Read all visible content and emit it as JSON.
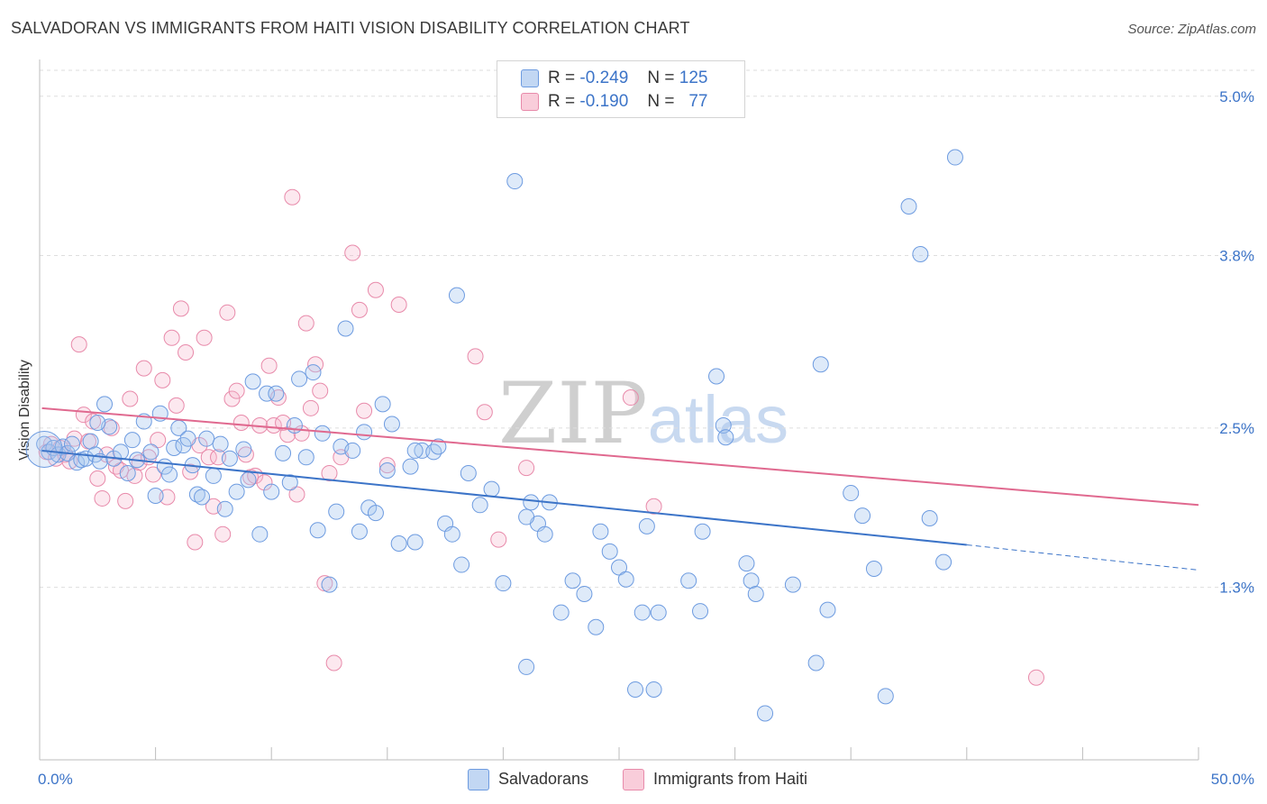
{
  "title": "SALVADORAN VS IMMIGRANTS FROM HAITI VISION DISABILITY CORRELATION CHART",
  "source": "Source: ZipAtlas.com",
  "watermark": {
    "zip": "ZIP",
    "atlas": "atlas"
  },
  "legend_top": [
    {
      "r_label": "R =",
      "r_value": "-0.249",
      "n_label": "N =",
      "n_value": "125",
      "color": "#a9c7ef"
    },
    {
      "r_label": "R =",
      "r_value": "-0.190",
      "n_label": "N =",
      "n_value": "77",
      "color": "#f6b8cc"
    }
  ],
  "legend_bottom": [
    {
      "label": "Salvadorans",
      "color": "#a9c7ef"
    },
    {
      "label": "Immigrants from Haiti",
      "color": "#f6b8cc"
    }
  ],
  "chart_data": {
    "type": "scatter",
    "xlabel": "",
    "ylabel": "Vision Disability",
    "xlim": [
      0,
      50
    ],
    "ylim": [
      0,
      5.25
    ],
    "x_tick_labels": [
      "0.0%",
      "50.0%"
    ],
    "y_ticks": [
      1.3,
      2.5,
      3.8,
      5.0
    ],
    "y_tick_labels": [
      "1.3%",
      "2.5%",
      "3.8%",
      "5.0%"
    ],
    "grid": "horizontal dashed",
    "colors": {
      "blue": "#3c74c8",
      "blue_fill": "#a9c7ef",
      "pink": "#e0698f",
      "pink_fill": "#f6b8cc"
    },
    "series": [
      {
        "name": "Salvadorans",
        "trend": {
          "x0": 0.1,
          "y0": 2.33,
          "x1": 40,
          "y1": 1.62,
          "dash_x1": 50,
          "dash_y1": 1.43
        },
        "points": [
          [
            0.2,
            2.38
          ],
          [
            0.4,
            2.32
          ],
          [
            0.6,
            2.35
          ],
          [
            0.8,
            2.3
          ],
          [
            1.0,
            2.36
          ],
          [
            1.2,
            2.31
          ],
          [
            1.4,
            2.38
          ],
          [
            1.6,
            2.24
          ],
          [
            1.8,
            2.26
          ],
          [
            2.0,
            2.27
          ],
          [
            2.2,
            2.4
          ],
          [
            2.4,
            2.3
          ],
          [
            2.6,
            2.25
          ],
          [
            2.8,
            2.68
          ],
          [
            3.0,
            2.51
          ],
          [
            3.2,
            2.27
          ],
          [
            3.5,
            2.32
          ],
          [
            3.8,
            2.16
          ],
          [
            4.0,
            2.41
          ],
          [
            4.2,
            2.26
          ],
          [
            4.5,
            2.55
          ],
          [
            4.8,
            2.32
          ],
          [
            5.0,
            1.99
          ],
          [
            5.2,
            2.61
          ],
          [
            5.4,
            2.21
          ],
          [
            5.6,
            2.15
          ],
          [
            5.8,
            2.35
          ],
          [
            6.0,
            2.5
          ],
          [
            6.2,
            2.37
          ],
          [
            6.4,
            2.42
          ],
          [
            6.6,
            2.22
          ],
          [
            6.8,
            2.0
          ],
          [
            7.0,
            1.98
          ],
          [
            7.2,
            2.42
          ],
          [
            7.5,
            2.14
          ],
          [
            7.8,
            2.38
          ],
          [
            8.0,
            1.89
          ],
          [
            8.2,
            2.27
          ],
          [
            8.5,
            2.02
          ],
          [
            8.8,
            2.34
          ],
          [
            9.0,
            2.11
          ],
          [
            9.2,
            2.85
          ],
          [
            9.5,
            1.7
          ],
          [
            9.8,
            2.76
          ],
          [
            10.0,
            2.02
          ],
          [
            10.2,
            2.76
          ],
          [
            10.5,
            2.31
          ],
          [
            10.8,
            2.09
          ],
          [
            11.0,
            2.52
          ],
          [
            11.2,
            2.87
          ],
          [
            11.5,
            2.28
          ],
          [
            11.8,
            2.92
          ],
          [
            12.0,
            1.73
          ],
          [
            12.2,
            2.46
          ],
          [
            12.5,
            1.32
          ],
          [
            12.8,
            1.87
          ],
          [
            13.0,
            2.36
          ],
          [
            13.2,
            3.25
          ],
          [
            13.5,
            2.33
          ],
          [
            13.8,
            1.72
          ],
          [
            14.0,
            2.47
          ],
          [
            14.2,
            1.9
          ],
          [
            14.5,
            1.86
          ],
          [
            14.8,
            2.68
          ],
          [
            15.0,
            2.18
          ],
          [
            15.2,
            2.53
          ],
          [
            15.5,
            1.63
          ],
          [
            16.0,
            2.21
          ],
          [
            16.2,
            1.64
          ],
          [
            16.5,
            2.33
          ],
          [
            17.0,
            2.32
          ],
          [
            17.2,
            2.36
          ],
          [
            17.5,
            1.78
          ],
          [
            17.8,
            1.7
          ],
          [
            18.0,
            3.5
          ],
          [
            18.2,
            1.47
          ],
          [
            18.5,
            2.16
          ],
          [
            19.0,
            1.92
          ],
          [
            19.5,
            2.04
          ],
          [
            20.0,
            1.33
          ],
          [
            20.5,
            4.36
          ],
          [
            21.0,
            0.7
          ],
          [
            21.2,
            1.94
          ],
          [
            21.5,
            1.78
          ],
          [
            21.8,
            1.7
          ],
          [
            22.0,
            1.94
          ],
          [
            22.5,
            1.11
          ],
          [
            23.0,
            1.35
          ],
          [
            23.5,
            1.25
          ],
          [
            24.0,
            1.0
          ],
          [
            24.2,
            1.72
          ],
          [
            25.0,
            1.45
          ],
          [
            25.3,
            1.36
          ],
          [
            25.7,
            0.53
          ],
          [
            26.0,
            1.11
          ],
          [
            26.2,
            1.76
          ],
          [
            26.5,
            0.53
          ],
          [
            26.7,
            1.11
          ],
          [
            28.0,
            1.35
          ],
          [
            28.5,
            1.12
          ],
          [
            28.6,
            1.72
          ],
          [
            29.2,
            2.89
          ],
          [
            29.5,
            2.52
          ],
          [
            29.6,
            2.43
          ],
          [
            30.5,
            1.48
          ],
          [
            30.7,
            1.35
          ],
          [
            30.9,
            1.25
          ],
          [
            31.3,
            0.35
          ],
          [
            32.5,
            1.32
          ],
          [
            33.5,
            0.73
          ],
          [
            33.7,
            2.98
          ],
          [
            34.0,
            1.13
          ],
          [
            35.0,
            2.01
          ],
          [
            35.5,
            1.84
          ],
          [
            36.0,
            1.44
          ],
          [
            36.5,
            0.48
          ],
          [
            37.5,
            4.17
          ],
          [
            38.0,
            3.81
          ],
          [
            39.0,
            1.49
          ],
          [
            38.4,
            1.82
          ],
          [
            39.5,
            4.54
          ],
          [
            2.5,
            2.54
          ],
          [
            16.2,
            2.33
          ],
          [
            21.0,
            1.83
          ],
          [
            24.6,
            1.57
          ]
        ]
      },
      {
        "name": "Immigrants from Haiti",
        "trend": {
          "x0": 0.1,
          "y0": 2.65,
          "x1": 50,
          "y1": 1.92
        },
        "points": [
          [
            0.3,
            2.32
          ],
          [
            0.5,
            2.38
          ],
          [
            0.7,
            2.27
          ],
          [
            0.9,
            2.35
          ],
          [
            1.1,
            2.3
          ],
          [
            1.3,
            2.25
          ],
          [
            1.5,
            2.42
          ],
          [
            1.7,
            3.13
          ],
          [
            1.9,
            2.6
          ],
          [
            2.1,
            2.4
          ],
          [
            2.3,
            2.55
          ],
          [
            2.5,
            2.12
          ],
          [
            2.7,
            1.97
          ],
          [
            2.9,
            2.3
          ],
          [
            3.1,
            2.5
          ],
          [
            3.3,
            2.21
          ],
          [
            3.5,
            2.18
          ],
          [
            3.7,
            1.95
          ],
          [
            3.9,
            2.72
          ],
          [
            4.1,
            2.14
          ],
          [
            4.3,
            2.24
          ],
          [
            4.5,
            2.95
          ],
          [
            4.7,
            2.28
          ],
          [
            4.9,
            2.15
          ],
          [
            5.1,
            2.41
          ],
          [
            5.3,
            2.86
          ],
          [
            5.5,
            1.98
          ],
          [
            5.7,
            3.18
          ],
          [
            5.9,
            2.67
          ],
          [
            6.1,
            3.4
          ],
          [
            6.3,
            3.07
          ],
          [
            6.5,
            2.17
          ],
          [
            6.7,
            1.64
          ],
          [
            6.9,
            2.37
          ],
          [
            7.1,
            3.18
          ],
          [
            7.3,
            2.28
          ],
          [
            7.5,
            1.91
          ],
          [
            7.7,
            2.28
          ],
          [
            7.9,
            1.7
          ],
          [
            8.1,
            3.37
          ],
          [
            8.3,
            2.72
          ],
          [
            8.5,
            2.78
          ],
          [
            8.7,
            2.54
          ],
          [
            8.9,
            2.3
          ],
          [
            9.1,
            2.13
          ],
          [
            9.3,
            2.14
          ],
          [
            9.5,
            2.52
          ],
          [
            9.7,
            2.09
          ],
          [
            9.9,
            2.97
          ],
          [
            10.1,
            2.52
          ],
          [
            10.3,
            2.73
          ],
          [
            10.5,
            2.54
          ],
          [
            10.7,
            2.45
          ],
          [
            10.9,
            4.24
          ],
          [
            11.1,
            2.0
          ],
          [
            11.3,
            2.46
          ],
          [
            11.5,
            3.29
          ],
          [
            11.7,
            2.65
          ],
          [
            11.9,
            2.98
          ],
          [
            12.1,
            2.78
          ],
          [
            12.3,
            1.33
          ],
          [
            12.5,
            2.16
          ],
          [
            12.7,
            0.73
          ],
          [
            13.0,
            2.28
          ],
          [
            13.5,
            3.82
          ],
          [
            13.8,
            3.39
          ],
          [
            14.0,
            2.63
          ],
          [
            14.5,
            3.54
          ],
          [
            15.0,
            2.22
          ],
          [
            15.5,
            3.43
          ],
          [
            18.8,
            3.04
          ],
          [
            19.2,
            2.62
          ],
          [
            19.8,
            1.66
          ],
          [
            21.0,
            2.2
          ],
          [
            25.5,
            2.73
          ],
          [
            26.5,
            1.91
          ],
          [
            43.0,
            0.62
          ]
        ]
      }
    ]
  }
}
